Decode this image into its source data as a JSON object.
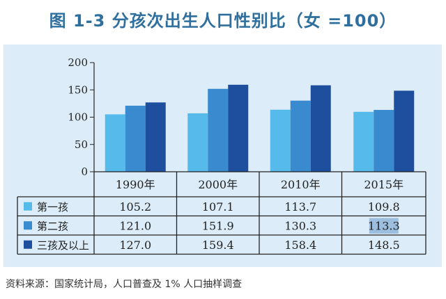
{
  "chart_data": {
    "type": "bar",
    "title": "图 1-3  分孩次出生人口性别比（女 =100）",
    "categories": [
      "1990年",
      "2000年",
      "2010年",
      "2015年"
    ],
    "series": [
      {
        "name": "第一孩",
        "values": [
          105.2,
          107.1,
          113.7,
          109.8
        ],
        "color": "#56bbea"
      },
      {
        "name": "第二孩",
        "values": [
          121.0,
          151.9,
          130.3,
          113.3
        ],
        "color": "#3a8ad0"
      },
      {
        "name": "三孩及以上",
        "values": [
          127.0,
          159.4,
          158.4,
          148.5
        ],
        "color": "#1e4f9e"
      }
    ],
    "value_labels": [
      [
        "105.2",
        "107.1",
        "113.7",
        "109.8"
      ],
      [
        "121.0",
        "151.9",
        "130.3",
        "113.3"
      ],
      [
        "127.0",
        "159.4",
        "158.4",
        "148.5"
      ]
    ],
    "yticks": [
      "0",
      "50",
      "100",
      "150",
      "200"
    ],
    "ylim": [
      0,
      200
    ],
    "grid": false,
    "legend": "data-table",
    "highlighted_cell": {
      "series": "第二孩",
      "category": "2015年",
      "color": "#9cbfe0"
    },
    "background": "#dcedf9"
  },
  "source": "资料来源：国家统计局，人口普查及 1% 人口抽样调查"
}
